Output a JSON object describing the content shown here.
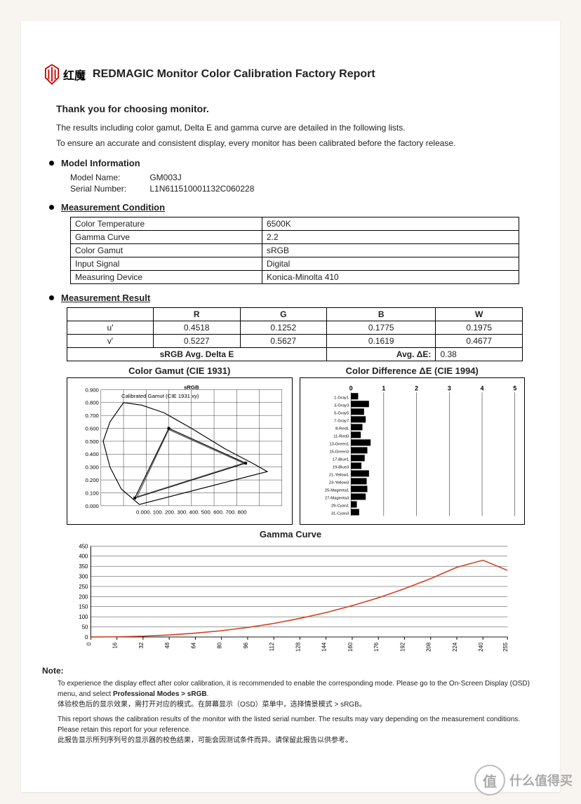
{
  "header": {
    "brand_cn": "红魔",
    "title": "REDMAGIC Monitor Color Calibration Factory Report",
    "logo_color": "#c00"
  },
  "intro": {
    "thanks": "Thank you for choosing monitor.",
    "line1": "The results including color gamut, Delta E and gamma curve are detailed in the following lists.",
    "line2": "To ensure an accurate and consistent display, every monitor has been calibrated before the factory release."
  },
  "model": {
    "heading": "Model Information",
    "name_label": "Model Name:",
    "name_value": "GM003J",
    "serial_label": "Serial Number:",
    "serial_value": "L1N611510001132C060228"
  },
  "condition": {
    "heading": "Measurement Condition",
    "rows": [
      [
        "Color Temperature",
        "6500K"
      ],
      [
        "Gamma Curve",
        "2.2"
      ],
      [
        "Color Gamut",
        "sRGB"
      ],
      [
        "Input Signal",
        "Digital"
      ],
      [
        "Measuring Device",
        "Konica-Minolta 410"
      ]
    ]
  },
  "result": {
    "heading": "Measurement Result",
    "cols": [
      "R",
      "G",
      "B",
      "W"
    ],
    "rows": [
      {
        "label": "u'",
        "vals": [
          "0.4518",
          "0.1252",
          "0.1775",
          "0.1975"
        ]
      },
      {
        "label": "v'",
        "vals": [
          "0.5227",
          "0.5627",
          "0.1619",
          "0.4677"
        ]
      }
    ],
    "delta_label": "sRGB Avg. Delta E",
    "delta_avg_label": "Avg. ΔE:",
    "delta_avg_value": "0.38"
  },
  "gamut_chart": {
    "title": "Color Gamut (CIE 1931)",
    "type": "cie-chromaticity",
    "legend": [
      "sRGB",
      "Calibrated Gamut (CIE 1931 xy)"
    ],
    "xlim": [
      0,
      0.8
    ],
    "ylim": [
      0,
      0.9
    ],
    "xticks": [
      "0.000",
      "100",
      "200",
      "300",
      "400",
      "500",
      "600",
      "700",
      "800"
    ],
    "yticks": [
      "0.900",
      "0.800",
      "0.700",
      "0.600",
      "0.500",
      "0.400",
      "0.300",
      "0.200",
      "0.100",
      "0.000"
    ],
    "grid_color": "#000",
    "srgb_triangle": [
      [
        0.64,
        0.33
      ],
      [
        0.3,
        0.6
      ],
      [
        0.15,
        0.06
      ]
    ],
    "calibrated_triangle": [
      [
        0.63,
        0.33
      ],
      [
        0.3,
        0.59
      ],
      [
        0.16,
        0.07
      ]
    ],
    "horseshoe_colors": "spectral",
    "background": "#fff"
  },
  "deltae_chart": {
    "title": "Color Difference ΔE (CIE 1994)",
    "type": "bar-horizontal",
    "xlim": [
      0,
      5
    ],
    "xticks": [
      0,
      1,
      2,
      3,
      4,
      5
    ],
    "labels": [
      "1-Gray1",
      "3-Gray3",
      "5-Gray5",
      "7-Gray7",
      "8-Red1",
      "11-Red3",
      "13-Green1",
      "15-Green3",
      "17-Blue1",
      "19-Blue3",
      "21-Yellow1",
      "23-Yellow3",
      "25-Magenta1",
      "27-Magenta3",
      "29-Cyan1",
      "31-Cyan3"
    ],
    "values": [
      0.22,
      0.55,
      0.4,
      0.45,
      0.35,
      0.3,
      0.6,
      0.5,
      0.42,
      0.32,
      0.55,
      0.48,
      0.5,
      0.45,
      0.18,
      0.25
    ],
    "bar_color": "#000",
    "background": "#fff",
    "label_fontsize": 6
  },
  "gamma_chart": {
    "title": "Gamma Curve",
    "type": "line",
    "xlim": [
      0,
      255
    ],
    "ylim": [
      0,
      450
    ],
    "yticks": [
      0,
      50,
      100,
      150,
      200,
      250,
      300,
      350,
      400,
      450
    ],
    "xticks": [
      0,
      16,
      32,
      48,
      64,
      80,
      96,
      112,
      128,
      144,
      160,
      176,
      192,
      208,
      224,
      240,
      255
    ],
    "x": [
      0,
      16,
      32,
      48,
      64,
      80,
      96,
      112,
      128,
      144,
      160,
      176,
      192,
      208,
      224,
      240,
      255
    ],
    "y": [
      0,
      1,
      4,
      10,
      19,
      31,
      47,
      67,
      92,
      121,
      155,
      194,
      239,
      289,
      345,
      380,
      330
    ],
    "line_color": "#d04020",
    "grid_color": "#000",
    "background": "#fff"
  },
  "notes": {
    "heading": "Note:",
    "p1a": "To experience the display effect after color calibration, it is recommended to enable the corresponding mode. Please go to the On-Screen Display (OSD) menu, and select ",
    "p1b": "Professional Modes > sRGB",
    "p1c": ".",
    "p2": "体验校色后的显示效果，需打开对应的模式。在屏幕显示（OSD）菜单中，选择情景模式 > sRGB。",
    "p3": "This report shows the calibration results of the monitor with the listed serial number. The results may vary depending on the measurement conditions. Please retain this report for your reference.",
    "p4": "此报告显示所列序列号的显示器的校色结果，可能会因测试条件而异。请保留此报告以供参考。"
  },
  "watermark": {
    "badge": "值",
    "text": "什么值得买"
  }
}
